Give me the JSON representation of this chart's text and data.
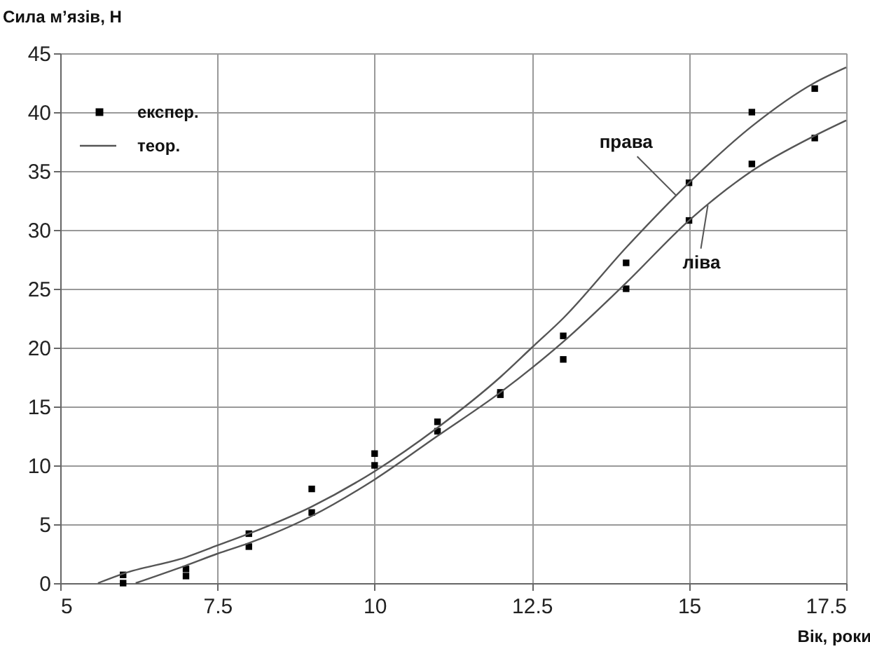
{
  "chart_data": {
    "type": "scatter",
    "xlabel": "Вік, роки",
    "ylabel": "Сила м’язів,   Н",
    "xlim": [
      5,
      17.5
    ],
    "xticks": [
      5,
      7.5,
      10,
      12.5,
      15,
      17.5
    ],
    "ylim": [
      0,
      45
    ],
    "yticks": [
      0,
      5,
      10,
      15,
      20,
      25,
      30,
      35,
      40,
      45
    ],
    "grid": true,
    "legend": "top left",
    "series": [
      {
        "name": "експер.",
        "marker": "square",
        "color": "#000000",
        "x": [
          6,
          7,
          8,
          9,
          10,
          11,
          12,
          13,
          14,
          15,
          16,
          17
        ],
        "values": [
          0.7,
          1.2,
          4.2,
          8,
          11,
          13.7,
          16.2,
          21,
          27.2,
          34,
          40,
          42
        ]
      },
      {
        "marker": "square",
        "color": "#000000",
        "x": [
          6,
          7,
          8,
          9,
          10,
          11,
          12,
          13,
          14,
          15,
          16,
          17
        ],
        "values": [
          0,
          0.6,
          3.1,
          6,
          10,
          12.9,
          16,
          19,
          25,
          30.8,
          35.6,
          37.8
        ]
      },
      {
        "name": "теор.",
        "type": "line",
        "color": "#555555",
        "x": [
          5.6,
          6,
          7,
          7.5,
          8,
          9,
          10,
          11,
          12,
          12.5,
          13,
          14,
          15,
          16,
          17,
          17.5
        ],
        "values": [
          0,
          0.8,
          2.2,
          3.2,
          4.2,
          6.5,
          9.5,
          13.2,
          17.5,
          20,
          22.5,
          28.5,
          34,
          38.8,
          42.5,
          43.8
        ]
      },
      {
        "type": "line",
        "color": "#555555",
        "x": [
          6.2,
          7,
          7.5,
          8,
          9,
          10,
          11,
          12,
          13,
          14,
          15,
          16,
          17,
          17.5
        ],
        "values": [
          0,
          1.5,
          2.5,
          3.4,
          5.7,
          8.8,
          12.5,
          16.2,
          20.5,
          25.5,
          30.8,
          35,
          38,
          39.3
        ]
      }
    ],
    "annotations": [
      {
        "text": "права",
        "x": 14.8,
        "y": 32.9
      },
      {
        "text": "ліва",
        "x": 15.3,
        "y": 32.1
      }
    ]
  }
}
